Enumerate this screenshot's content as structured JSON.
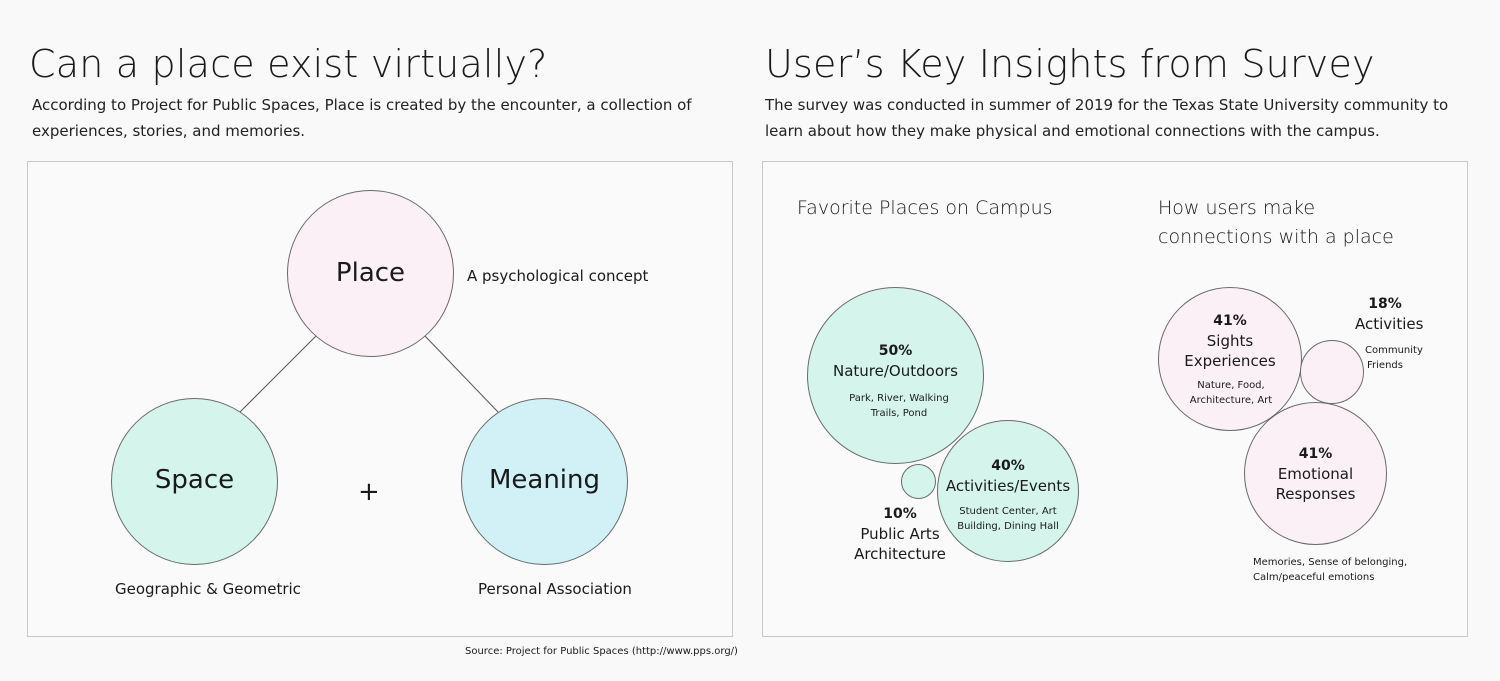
{
  "left": {
    "title": "Can a place exist virtually?",
    "description": "According to Project for Public Spaces, Place is created by the encounter, a collection of experiences, stories, and memories.",
    "diagram": {
      "place": "Place",
      "place_note": "A psychological concept",
      "space": "Space",
      "space_note": "Geographic & Geometric",
      "plus": "+",
      "meaning": "Meaning",
      "meaning_note": "Personal Association"
    },
    "source": "Source: Project for Public Spaces (http://www.pps.org/)"
  },
  "right": {
    "title": "User’s Key Insights from Survey",
    "description": "The survey was conducted in summer of 2019 for the Texas State University community to learn about how they make physical and emotional connections with the campus.",
    "favorite": {
      "heading": "Favorite Places on Campus",
      "nature": {
        "pct": "50%",
        "name": "Nature/Outdoors",
        "details": "Park, River, Walking Trails, Pond"
      },
      "activities": {
        "pct": "40%",
        "name": "Activities/Events",
        "details": "Student Center, Art Building, Dining Hall"
      },
      "arts": {
        "pct": "10%",
        "name": "Public Arts Architecture"
      }
    },
    "connections": {
      "heading": "How users make connections with a place",
      "sights": {
        "pct": "41%",
        "name": "Sights Experiences",
        "details": "Nature, Food, Architecture, Art"
      },
      "activities": {
        "pct": "18%",
        "name": "Activities",
        "details": "Community Friends"
      },
      "emotional": {
        "pct": "41%",
        "name": "Emotional Responses",
        "details": "Memories, Sense of belonging, Calm/peaceful emotions"
      }
    }
  }
}
